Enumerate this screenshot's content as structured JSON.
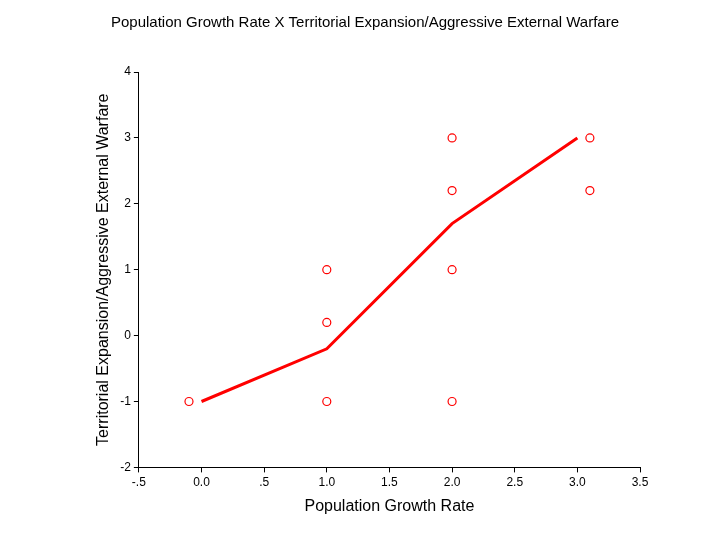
{
  "chart_data": {
    "type": "scatter",
    "title": "Population Growth Rate X Territorial Expansion/Aggressive External Warfare",
    "x_label": "Population Growth Rate",
    "y_label": "Territorial Expansion/Aggressive External Warfare",
    "xlim": [
      -0.5,
      3.5
    ],
    "xticks": [
      {
        "value": -0.5,
        "label": "-.5"
      },
      {
        "value": 0,
        "label": "0.0"
      },
      {
        "value": 0.5,
        "label": ".5"
      },
      {
        "value": 1,
        "label": "1.0"
      },
      {
        "value": 1.5,
        "label": "1.5"
      },
      {
        "value": 2,
        "label": "2.0"
      },
      {
        "value": 2.5,
        "label": "2.5"
      },
      {
        "value": 3,
        "label": "3.0"
      },
      {
        "value": 3.5,
        "label": "3.5"
      }
    ],
    "ylim": [
      -2,
      4
    ],
    "yticks": [
      -2,
      -1,
      0,
      1,
      2,
      3,
      4
    ],
    "grid": false,
    "series": [
      {
        "type": "scatter",
        "color": "#ff0000",
        "marker": "circle",
        "x": [
          -0.1,
          1.0,
          1.0,
          1.0,
          2.0,
          2.0,
          2.0,
          2.0,
          3.1,
          3.1
        ],
        "values": [
          -1,
          1,
          0.2,
          -1,
          3,
          2.2,
          1,
          -1,
          3,
          2.2
        ]
      },
      {
        "type": "line",
        "color": "#ff0000",
        "line_style": "solid",
        "x": [
          0,
          1,
          2,
          3
        ],
        "values": [
          -1,
          -0.2,
          1.7,
          3
        ]
      }
    ]
  }
}
